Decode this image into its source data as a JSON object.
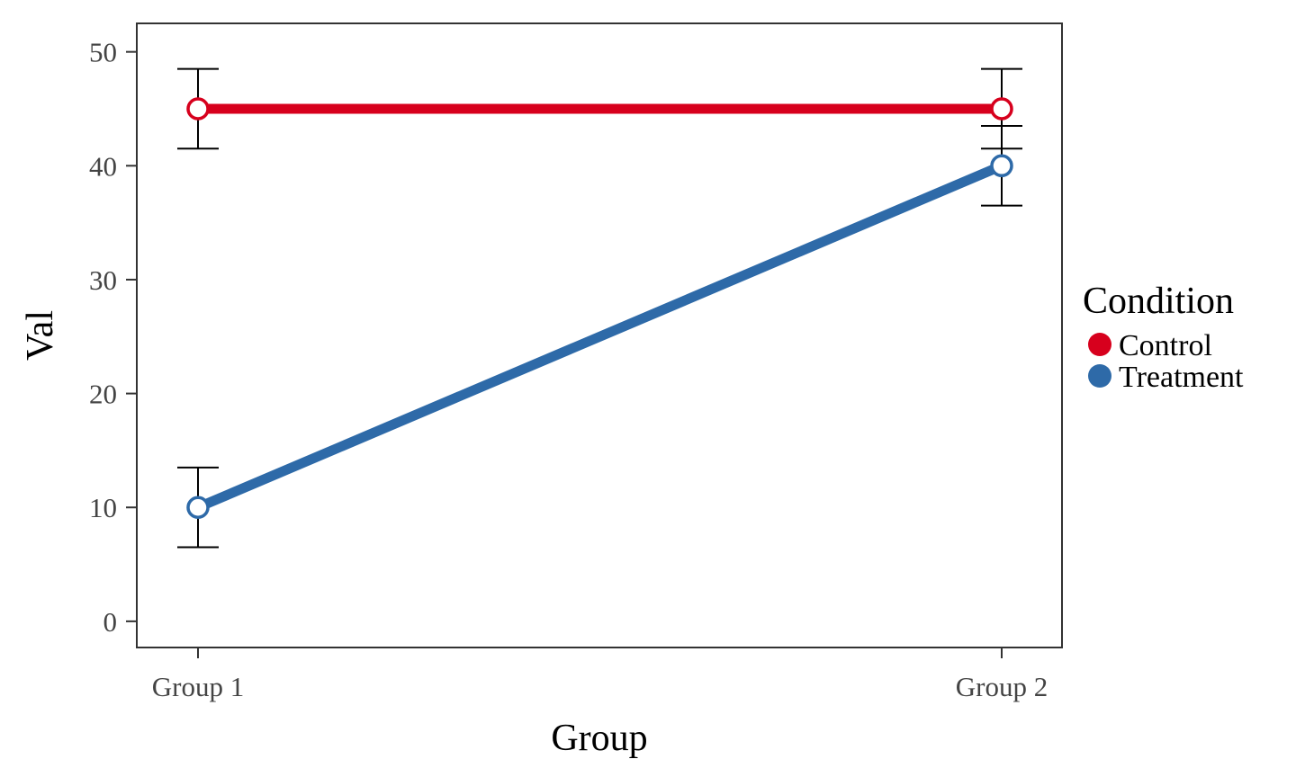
{
  "chart_data": {
    "type": "line",
    "xlabel": "Group",
    "ylabel": "Val",
    "categories": [
      "Group 1",
      "Group 2"
    ],
    "ylim": [
      -2.3,
      52.5
    ],
    "yticks": [
      0,
      10,
      20,
      30,
      40,
      50
    ],
    "grid": false,
    "legend": {
      "title": "Condition",
      "placement": "right"
    },
    "series": [
      {
        "name": "Control",
        "color": "#d7001d",
        "values": [
          45,
          45
        ],
        "error": [
          3.5,
          3.5
        ]
      },
      {
        "name": "Treatment",
        "color": "#2e6aa8",
        "values": [
          10,
          40
        ],
        "error": [
          3.5,
          3.5
        ]
      }
    ]
  }
}
